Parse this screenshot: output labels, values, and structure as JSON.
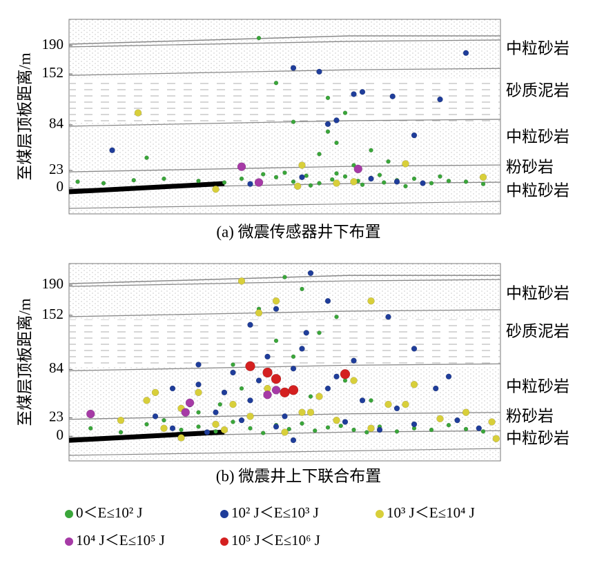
{
  "chart_data": [
    {
      "type": "scatter",
      "caption": "(a)  微震传感器井下布置",
      "ylabel": "至煤层顶板距离/m",
      "layers": [
        "中粒砂岩",
        "砂质泥岩",
        "中粒砂岩",
        "粉砂岩",
        "中粒砂岩"
      ],
      "xlim": [
        0,
        100
      ],
      "ylim": [
        -35,
        225
      ],
      "yticks": [
        0,
        23,
        84,
        152,
        190
      ],
      "series": [
        {
          "name": "0＜E≤10² J",
          "color": "#3aa63a",
          "marker_size": 3,
          "x": [
            2,
            8,
            15,
            22,
            30,
            36,
            40,
            44,
            48,
            52,
            55,
            58,
            61,
            64,
            67,
            70,
            73,
            76,
            80,
            84,
            88,
            92,
            96,
            45,
            50,
            56,
            62,
            68,
            72,
            78,
            86,
            58,
            62,
            66,
            70,
            52,
            60,
            48,
            74,
            18,
            64,
            44,
            60
          ],
          "y": [
            8,
            6,
            10,
            12,
            9,
            7,
            12,
            5,
            14,
            8,
            16,
            6,
            11,
            15,
            9,
            13,
            7,
            10,
            12,
            6,
            9,
            8,
            5,
            18,
            20,
            3,
            19,
            4,
            17,
            2,
            15,
            45,
            60,
            30,
            50,
            88,
            120,
            140,
            35,
            40,
            100,
            200,
            75
          ]
        },
        {
          "name": "10² J＜E≤10³ J",
          "color": "#1f3d9a",
          "marker_size": 4,
          "x": [
            52,
            66,
            68,
            75,
            86,
            80,
            58,
            42,
            10,
            62,
            70,
            54,
            76,
            60,
            82,
            92
          ],
          "y": [
            160,
            125,
            128,
            122,
            118,
            70,
            155,
            5,
            50,
            90,
            12,
            14,
            8,
            85,
            6,
            180
          ]
        },
        {
          "name": "10³ J＜E≤10⁴ J",
          "color": "#d8cf3a",
          "marker_size": 5,
          "x": [
            16,
            54,
            34,
            66,
            53,
            78,
            96,
            62
          ],
          "y": [
            100,
            30,
            -2,
            8,
            2,
            32,
            14,
            6
          ]
        },
        {
          "name": "10⁴ J＜E≤10⁵ J",
          "color": "#a63aa6",
          "marker_size": 6,
          "x": [
            40,
            44,
            67
          ],
          "y": [
            28,
            7,
            25
          ]
        },
        {
          "name": "10⁵ J＜E≤10⁶ J",
          "color": "#d42020",
          "marker_size": 7,
          "x": [],
          "y": []
        }
      ]
    },
    {
      "type": "scatter",
      "caption": "(b)  微震井上下联合布置",
      "ylabel": "至煤层顶板距离/m",
      "layers": [
        "中粒砂岩",
        "砂质泥岩",
        "中粒砂岩",
        "粉砂岩",
        "中粒砂岩"
      ],
      "xlim": [
        0,
        100
      ],
      "ylim": [
        -31,
        217
      ],
      "yticks": [
        0,
        23,
        84,
        152,
        190
      ],
      "series": [
        {
          "color": "#3aa63a",
          "marker_size": 3,
          "x": [
            5,
            12,
            18,
            22,
            26,
            30,
            34,
            38,
            42,
            45,
            48,
            51,
            54,
            57,
            60,
            63,
            66,
            69,
            72,
            76,
            80,
            84,
            88,
            92,
            96,
            35,
            40,
            46,
            52,
            58,
            64,
            44,
            50,
            56,
            30,
            38,
            62,
            70,
            48,
            54
          ],
          "y": [
            10,
            5,
            15,
            20,
            8,
            12,
            6,
            18,
            10,
            4,
            14,
            9,
            16,
            7,
            11,
            13,
            8,
            5,
            12,
            6,
            10,
            8,
            14,
            9,
            6,
            40,
            60,
            80,
            100,
            130,
            70,
            160,
            200,
            50,
            30,
            90,
            150,
            45,
            120,
            185
          ]
        },
        {
          "color": "#1f3d9a",
          "marker_size": 4,
          "x": [
            20,
            24,
            28,
            32,
            36,
            40,
            44,
            48,
            52,
            56,
            60,
            64,
            68,
            72,
            76,
            80,
            85,
            90,
            95,
            30,
            34,
            38,
            42,
            46,
            50,
            54,
            58,
            62,
            66,
            42,
            48,
            55,
            60,
            52,
            30,
            88,
            24,
            74,
            80,
            56
          ],
          "y": [
            25,
            10,
            40,
            5,
            55,
            20,
            70,
            12,
            85,
            30,
            60,
            18,
            45,
            8,
            35,
            15,
            60,
            20,
            10,
            65,
            30,
            80,
            45,
            100,
            25,
            110,
            50,
            75,
            95,
            140,
            160,
            130,
            170,
            -5,
            90,
            75,
            60,
            150,
            110,
            205
          ]
        },
        {
          "color": "#d8cf3a",
          "marker_size": 5,
          "x": [
            12,
            18,
            22,
            26,
            30,
            34,
            38,
            42,
            46,
            50,
            54,
            58,
            62,
            66,
            70,
            74,
            80,
            86,
            92,
            98,
            40,
            48,
            44,
            70,
            20,
            26,
            36,
            56,
            78,
            99
          ],
          "y": [
            20,
            45,
            10,
            35,
            55,
            15,
            40,
            25,
            60,
            5,
            30,
            50,
            20,
            70,
            10,
            40,
            65,
            22,
            30,
            18,
            195,
            170,
            155,
            170,
            55,
            -2,
            8,
            30,
            40,
            -3
          ]
        },
        {
          "color": "#a63aa6",
          "marker_size": 6,
          "x": [
            5,
            27,
            28,
            46,
            48
          ],
          "y": [
            28,
            30,
            42,
            52,
            58
          ]
        },
        {
          "color": "#d42020",
          "marker_size": 7,
          "x": [
            42,
            46,
            48,
            50,
            52,
            64
          ],
          "y": [
            88,
            80,
            72,
            55,
            58,
            78
          ]
        }
      ]
    }
  ]
}
